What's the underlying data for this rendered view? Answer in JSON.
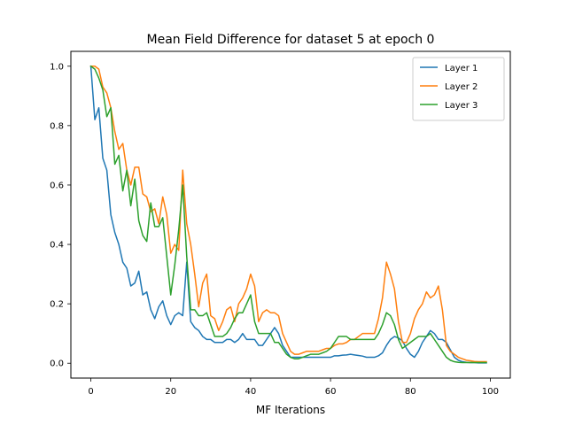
{
  "chart_data": {
    "type": "line",
    "title": "Mean Field Difference for dataset 5 at epoch 0",
    "xlabel": "MF Iterations",
    "ylabel": "",
    "xlim": [
      -5,
      105
    ],
    "ylim": [
      -0.05,
      1.05
    ],
    "xticks": [
      0,
      20,
      40,
      60,
      80,
      100
    ],
    "yticks": [
      0.0,
      0.2,
      0.4,
      0.6,
      0.8,
      1.0
    ],
    "xtick_labels": [
      "0",
      "20",
      "40",
      "60",
      "80",
      "100"
    ],
    "ytick_labels": [
      "0.0",
      "0.2",
      "0.4",
      "0.6",
      "0.8",
      "1.0"
    ],
    "legend_position": "top-right",
    "x": [
      0,
      1,
      2,
      3,
      4,
      5,
      6,
      7,
      8,
      9,
      10,
      11,
      12,
      13,
      14,
      15,
      16,
      17,
      18,
      19,
      20,
      21,
      22,
      23,
      24,
      25,
      26,
      27,
      28,
      29,
      30,
      31,
      32,
      33,
      34,
      35,
      36,
      37,
      38,
      39,
      40,
      41,
      42,
      43,
      44,
      45,
      46,
      47,
      48,
      49,
      50,
      51,
      52,
      53,
      54,
      55,
      56,
      57,
      58,
      59,
      60,
      61,
      62,
      63,
      64,
      65,
      66,
      67,
      68,
      69,
      70,
      71,
      72,
      73,
      74,
      75,
      76,
      77,
      78,
      79,
      80,
      81,
      82,
      83,
      84,
      85,
      86,
      87,
      88,
      89,
      90,
      91,
      92,
      93,
      94,
      95,
      96,
      97,
      98,
      99
    ],
    "series": [
      {
        "name": "Layer 1",
        "color": "#1f77b4",
        "values": [
          1.0,
          0.82,
          0.86,
          0.69,
          0.65,
          0.5,
          0.44,
          0.4,
          0.34,
          0.32,
          0.26,
          0.27,
          0.31,
          0.23,
          0.24,
          0.18,
          0.15,
          0.19,
          0.21,
          0.16,
          0.13,
          0.16,
          0.17,
          0.16,
          0.34,
          0.14,
          0.12,
          0.11,
          0.09,
          0.08,
          0.08,
          0.07,
          0.07,
          0.07,
          0.08,
          0.08,
          0.07,
          0.08,
          0.1,
          0.08,
          0.08,
          0.08,
          0.06,
          0.06,
          0.08,
          0.1,
          0.12,
          0.1,
          0.06,
          0.04,
          0.02,
          0.02,
          0.02,
          0.02,
          0.02,
          0.02,
          0.02,
          0.02,
          0.02,
          0.02,
          0.02,
          0.025,
          0.025,
          0.027,
          0.028,
          0.03,
          0.028,
          0.026,
          0.024,
          0.02,
          0.02,
          0.02,
          0.025,
          0.035,
          0.06,
          0.08,
          0.09,
          0.085,
          0.075,
          0.05,
          0.03,
          0.02,
          0.04,
          0.07,
          0.09,
          0.11,
          0.1,
          0.08,
          0.08,
          0.07,
          0.045,
          0.02,
          0.01,
          0.005,
          0.003,
          0.002,
          0.002,
          0.001,
          0.001,
          0.001
        ]
      },
      {
        "name": "Layer 2",
        "color": "#ff7f0e",
        "values": [
          1.0,
          1.0,
          0.99,
          0.93,
          0.91,
          0.86,
          0.78,
          0.72,
          0.74,
          0.65,
          0.6,
          0.66,
          0.66,
          0.57,
          0.56,
          0.51,
          0.52,
          0.47,
          0.56,
          0.5,
          0.37,
          0.4,
          0.38,
          0.65,
          0.47,
          0.4,
          0.3,
          0.19,
          0.27,
          0.3,
          0.16,
          0.15,
          0.11,
          0.14,
          0.18,
          0.19,
          0.14,
          0.2,
          0.22,
          0.25,
          0.3,
          0.26,
          0.14,
          0.17,
          0.18,
          0.17,
          0.17,
          0.16,
          0.1,
          0.07,
          0.04,
          0.03,
          0.03,
          0.035,
          0.04,
          0.04,
          0.04,
          0.04,
          0.045,
          0.05,
          0.05,
          0.06,
          0.065,
          0.065,
          0.07,
          0.08,
          0.08,
          0.09,
          0.1,
          0.1,
          0.1,
          0.1,
          0.15,
          0.22,
          0.34,
          0.3,
          0.25,
          0.14,
          0.07,
          0.07,
          0.1,
          0.15,
          0.18,
          0.2,
          0.24,
          0.22,
          0.23,
          0.26,
          0.18,
          0.06,
          0.04,
          0.03,
          0.02,
          0.015,
          0.01,
          0.008,
          0.006,
          0.005,
          0.005,
          0.005
        ]
      },
      {
        "name": "Layer 3",
        "color": "#2ca02c",
        "values": [
          1.0,
          0.99,
          0.96,
          0.92,
          0.83,
          0.86,
          0.67,
          0.7,
          0.58,
          0.65,
          0.53,
          0.62,
          0.48,
          0.43,
          0.41,
          0.54,
          0.46,
          0.46,
          0.49,
          0.36,
          0.23,
          0.33,
          0.45,
          0.6,
          0.36,
          0.18,
          0.18,
          0.16,
          0.16,
          0.17,
          0.13,
          0.09,
          0.09,
          0.09,
          0.1,
          0.12,
          0.15,
          0.17,
          0.17,
          0.2,
          0.23,
          0.14,
          0.1,
          0.1,
          0.1,
          0.1,
          0.07,
          0.07,
          0.05,
          0.03,
          0.02,
          0.015,
          0.015,
          0.02,
          0.025,
          0.03,
          0.03,
          0.03,
          0.035,
          0.04,
          0.05,
          0.07,
          0.09,
          0.09,
          0.09,
          0.08,
          0.08,
          0.08,
          0.08,
          0.08,
          0.08,
          0.08,
          0.1,
          0.13,
          0.17,
          0.16,
          0.13,
          0.08,
          0.05,
          0.06,
          0.07,
          0.08,
          0.09,
          0.09,
          0.09,
          0.1,
          0.08,
          0.06,
          0.04,
          0.02,
          0.01,
          0.005,
          0.003,
          0.002,
          0.002,
          0.002,
          0.002,
          0.002,
          0.002,
          0.002
        ]
      }
    ]
  }
}
